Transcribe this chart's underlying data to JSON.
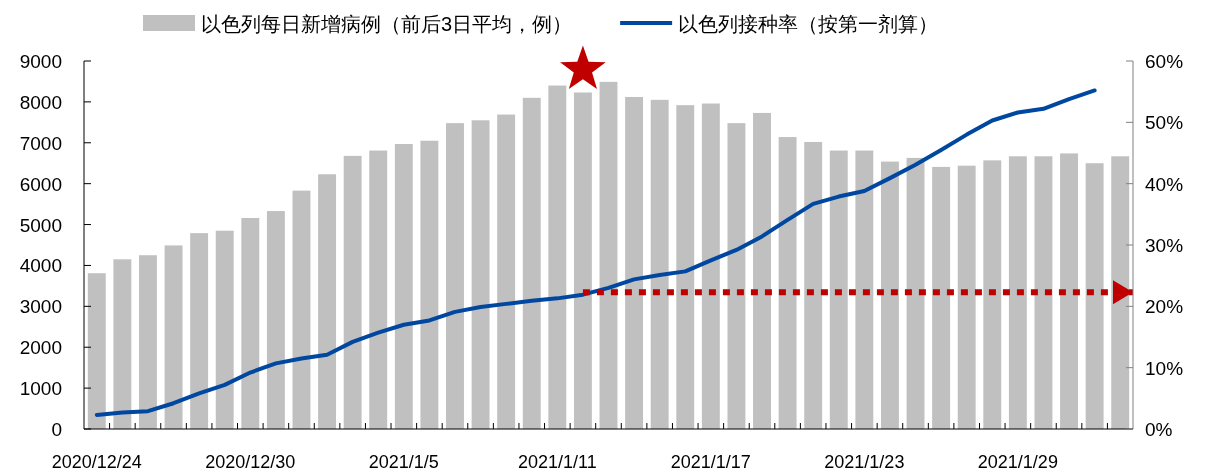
{
  "chart_data": {
    "type": "bar",
    "x": [
      "2020-12-24",
      "2020-12-25",
      "2020-12-26",
      "2020-12-27",
      "2020-12-28",
      "2020-12-29",
      "2020-12-30",
      "2020-12-31",
      "2021-01-01",
      "2021-01-02",
      "2021-01-03",
      "2021-01-04",
      "2021-01-05",
      "2021-01-06",
      "2021-01-07",
      "2021-01-08",
      "2021-01-09",
      "2021-01-10",
      "2021-01-11",
      "2021-01-12",
      "2021-01-13",
      "2021-01-14",
      "2021-01-15",
      "2021-01-16",
      "2021-01-17",
      "2021-01-18",
      "2021-01-19",
      "2021-01-20",
      "2021-01-21",
      "2021-01-22",
      "2021-01-23",
      "2021-01-24",
      "2021-01-25",
      "2021-01-26",
      "2021-01-27",
      "2021-01-28",
      "2021-01-29",
      "2021-01-30",
      "2021-01-31",
      "2021-02-01",
      "2021-02-02"
    ],
    "series": [
      {
        "name": "以色列每日新增病例（前后3日平均，例）",
        "color": "#c0c0c0",
        "values": [
          3810,
          4150,
          4250,
          4490,
          4790,
          4850,
          5160,
          5330,
          5830,
          6230,
          6680,
          6810,
          6970,
          7050,
          7480,
          7550,
          7690,
          8100,
          8400,
          8230,
          8490,
          8120,
          8050,
          7920,
          7960,
          7480,
          7730,
          7140,
          7020,
          6810,
          6810,
          6540,
          6630,
          6410,
          6440,
          6570,
          6670,
          6670,
          6740,
          6500,
          6670
        ]
      },
      {
        "name": "以色列接种率（按第一剂算）",
        "type": "line",
        "axis": "y2",
        "color": "#0047a0",
        "values": [
          2.3,
          2.7,
          2.9,
          4.2,
          5.8,
          7.2,
          9.2,
          10.7,
          11.5,
          12.1,
          14.2,
          15.7,
          17.0,
          17.7,
          19.1,
          19.9,
          20.4,
          20.9,
          21.3,
          21.9,
          23.0,
          24.4,
          25.1,
          25.7,
          27.5,
          29.2,
          31.4,
          34.1,
          36.7,
          37.9,
          38.8,
          40.9,
          43.1,
          45.5,
          48.0,
          50.3,
          51.6,
          52.2,
          53.8,
          55.2,
          null
        ]
      },
      {
        "type": "line",
        "axis": "y2",
        "color": "#c00000",
        "line_style": "dotted",
        "x": [
          "2021-01-12",
          "2021-02-02T12:00"
        ],
        "values": [
          22.3,
          22.3
        ]
      },
      {
        "type": "scatter",
        "marker": "star",
        "color": "#c00000",
        "x": [
          "2021-01-12"
        ],
        "values": [
          8790
        ]
      }
    ],
    "xlim": [
      "2020-12-23T12:00",
      "2021-02-02T12:00"
    ],
    "xticks": [
      {
        "value": "2020-12-24",
        "label": "2020/12/24"
      },
      {
        "value": "2020-12-30",
        "label": "2020/12/30"
      },
      {
        "value": "2021-01-05",
        "label": "2021/1/5"
      },
      {
        "value": "2021-01-11",
        "label": "2021/1/11"
      },
      {
        "value": "2021-01-17",
        "label": "2021/1/17"
      },
      {
        "value": "2021-01-23",
        "label": "2021/1/23"
      },
      {
        "value": "2021-01-29",
        "label": "2021/1/29"
      }
    ],
    "ylim": [
      0,
      9000
    ],
    "yticks": [
      0,
      1000,
      2000,
      3000,
      4000,
      5000,
      6000,
      7000,
      8000,
      9000
    ],
    "y2lim": [
      0,
      60
    ],
    "y2ticks": [
      {
        "value": 0,
        "label": "0%"
      },
      {
        "value": 10,
        "label": "10%"
      },
      {
        "value": 20,
        "label": "20%"
      },
      {
        "value": 30,
        "label": "30%"
      },
      {
        "value": 40,
        "label": "40%"
      },
      {
        "value": 50,
        "label": "50%"
      },
      {
        "value": 60,
        "label": "60%"
      }
    ],
    "legend": "top",
    "grid": false
  }
}
